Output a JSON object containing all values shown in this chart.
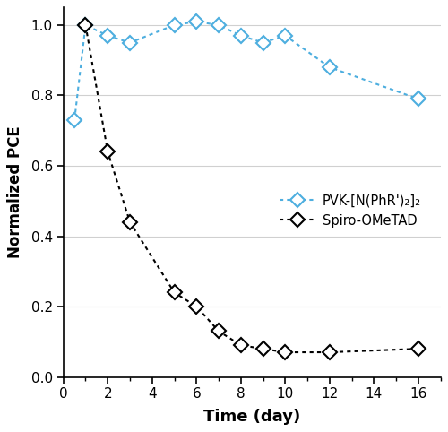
{
  "pvk_x": [
    0.5,
    1,
    2,
    3,
    5,
    6,
    7,
    8,
    9,
    10,
    12,
    16
  ],
  "pvk_y": [
    0.73,
    1.0,
    0.97,
    0.95,
    1.0,
    1.01,
    1.0,
    0.97,
    0.95,
    0.97,
    0.88,
    0.79
  ],
  "spiro_x": [
    1,
    2,
    3,
    5,
    6,
    7,
    8,
    9,
    10,
    12,
    16
  ],
  "spiro_y": [
    1.0,
    0.64,
    0.44,
    0.24,
    0.2,
    0.13,
    0.09,
    0.08,
    0.07,
    0.07,
    0.08
  ],
  "pvk_color": "#4daedf",
  "spiro_color": "#000000",
  "pvk_label": "PVK-[N(PhR')₂]₂",
  "spiro_label": "Spiro-OMeTAD",
  "xlabel": "Time (day)",
  "ylabel": "Normalized PCE",
  "xlim": [
    0,
    17
  ],
  "ylim": [
    0,
    1.05
  ],
  "xticks": [
    0,
    2,
    4,
    6,
    8,
    10,
    12,
    14,
    16
  ],
  "yticks": [
    0,
    0.2,
    0.4,
    0.6,
    0.8,
    1.0
  ],
  "marker_size": 8,
  "line_width": 1.5,
  "grid_color": "#d0d0d0",
  "bg_color": "#ffffff"
}
